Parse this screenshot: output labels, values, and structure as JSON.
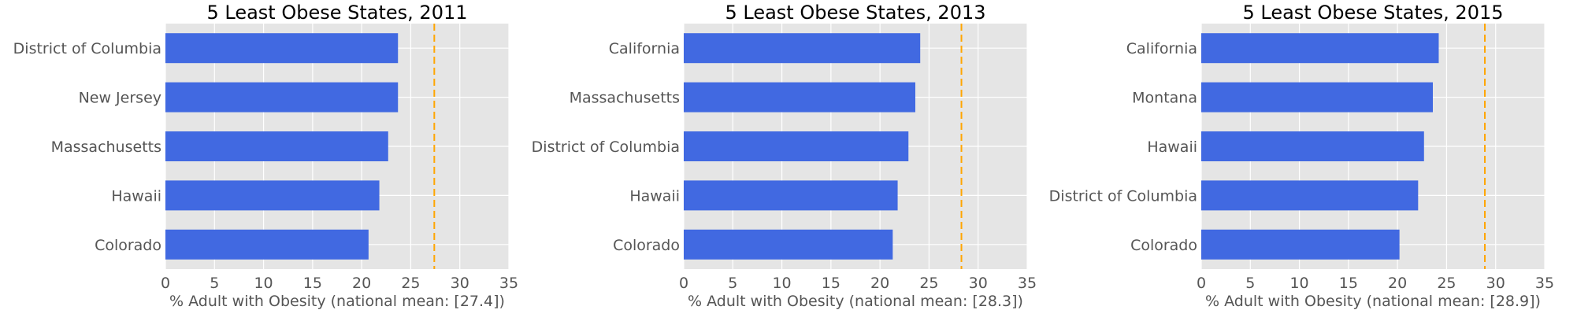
{
  "chart_data": [
    {
      "type": "bar",
      "orientation": "horizontal",
      "title": "5 Least Obese States, 2011",
      "categories": [
        "District of Columbia",
        "New Jersey",
        "Massachusetts",
        "Hawaii",
        "Colorado"
      ],
      "values": [
        23.7,
        23.7,
        22.7,
        21.8,
        20.7
      ],
      "reference_line": {
        "value": 27.4,
        "style": "dashed",
        "color": "#ffa500"
      },
      "xlabel": "% Adult with Obesity (national mean: [27.4])",
      "xlim": [
        0,
        35
      ],
      "xticks": [
        "0",
        "5",
        "10",
        "15",
        "20",
        "25",
        "30",
        "35"
      ],
      "grid": true
    },
    {
      "type": "bar",
      "orientation": "horizontal",
      "title": "5 Least Obese States, 2013",
      "categories": [
        "California",
        "Massachusetts",
        "District of Columbia",
        "Hawaii",
        "Colorado"
      ],
      "values": [
        24.1,
        23.6,
        22.9,
        21.8,
        21.3
      ],
      "reference_line": {
        "value": 28.3,
        "style": "dashed",
        "color": "#ffa500"
      },
      "xlabel": "% Adult with Obesity (national mean: [28.3])",
      "xlim": [
        0,
        35
      ],
      "xticks": [
        "0",
        "5",
        "10",
        "15",
        "20",
        "25",
        "30",
        "35"
      ],
      "grid": true
    },
    {
      "type": "bar",
      "orientation": "horizontal",
      "title": "5 Least Obese States, 2015",
      "categories": [
        "California",
        "Montana",
        "Hawaii",
        "District of Columbia",
        "Colorado"
      ],
      "values": [
        24.2,
        23.6,
        22.7,
        22.1,
        20.2
      ],
      "reference_line": {
        "value": 28.9,
        "style": "dashed",
        "color": "#ffa500"
      },
      "xlabel": "% Adult with Obesity (national mean: [28.9])",
      "xlim": [
        0,
        35
      ],
      "xticks": [
        "0",
        "5",
        "10",
        "15",
        "20",
        "25",
        "30",
        "35"
      ],
      "grid": true
    }
  ],
  "colors": {
    "bar": "#4169e1",
    "plot_background": "#e5e5e5",
    "grid": "#ffffff",
    "reference_line": "#ffa500",
    "tick_text": "#555555",
    "title_text": "#000000"
  }
}
